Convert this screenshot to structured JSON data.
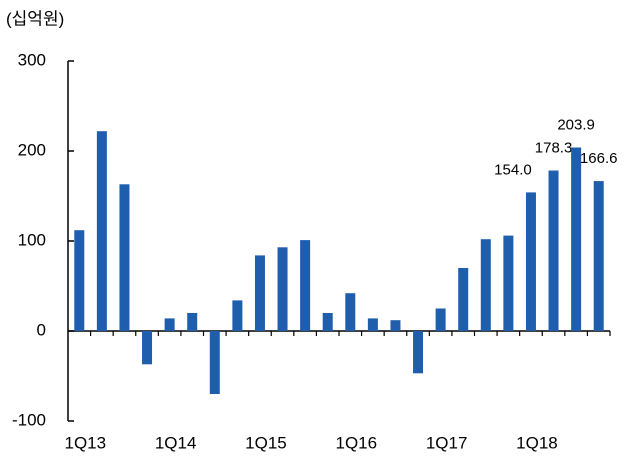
{
  "chart_data": {
    "type": "bar",
    "y_label": "(십억원)",
    "categories": [
      "1Q13",
      null,
      null,
      null,
      "1Q14",
      null,
      null,
      null,
      "1Q15",
      null,
      null,
      null,
      "1Q16",
      null,
      null,
      null,
      "1Q17",
      null,
      null,
      null,
      "1Q18",
      null,
      null,
      null
    ],
    "values": [
      112,
      222,
      163,
      -37,
      14,
      20,
      -70,
      34,
      84,
      93,
      101,
      20,
      42,
      14,
      12,
      -47,
      25,
      70,
      102,
      106,
      154.0,
      178.3,
      203.9,
      166.6
    ],
    "value_labels": [
      null,
      null,
      null,
      null,
      null,
      null,
      null,
      null,
      null,
      null,
      null,
      null,
      null,
      null,
      null,
      null,
      null,
      null,
      null,
      null,
      "154.0",
      "178.3",
      "203.9",
      "166.6"
    ],
    "color": "#1f5eac",
    "ylim": [
      -100,
      300
    ],
    "yticks": [
      -100,
      0,
      100,
      200,
      300
    ],
    "grid": false
  }
}
